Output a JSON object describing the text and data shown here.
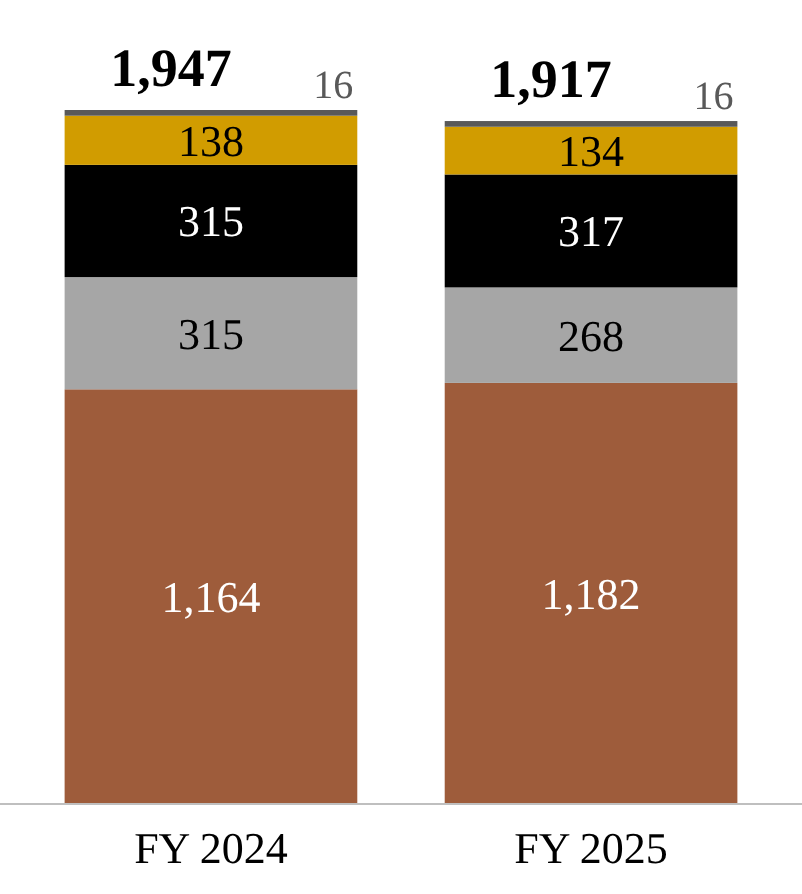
{
  "chart_data": {
    "type": "bar",
    "stacked": true,
    "categories": [
      "FY 2024",
      "FY 2025"
    ],
    "series": [
      {
        "color": "#9e5c3b",
        "values": [
          1164,
          1182
        ],
        "value_labels": [
          "1,164",
          "1,182"
        ]
      },
      {
        "color": "#a6a6a6",
        "values": [
          315,
          268
        ],
        "value_labels": [
          "315",
          "268"
        ]
      },
      {
        "color": "#000000",
        "values": [
          315,
          317
        ],
        "value_labels": [
          "315",
          "317"
        ]
      },
      {
        "color": "#d19c00",
        "values": [
          138,
          134
        ],
        "value_labels": [
          "138",
          "134"
        ]
      },
      {
        "color": "#595959",
        "values": [
          16,
          16
        ],
        "value_labels": [
          "16",
          "16"
        ]
      }
    ],
    "totals": [
      "1,947",
      "1,917"
    ]
  }
}
